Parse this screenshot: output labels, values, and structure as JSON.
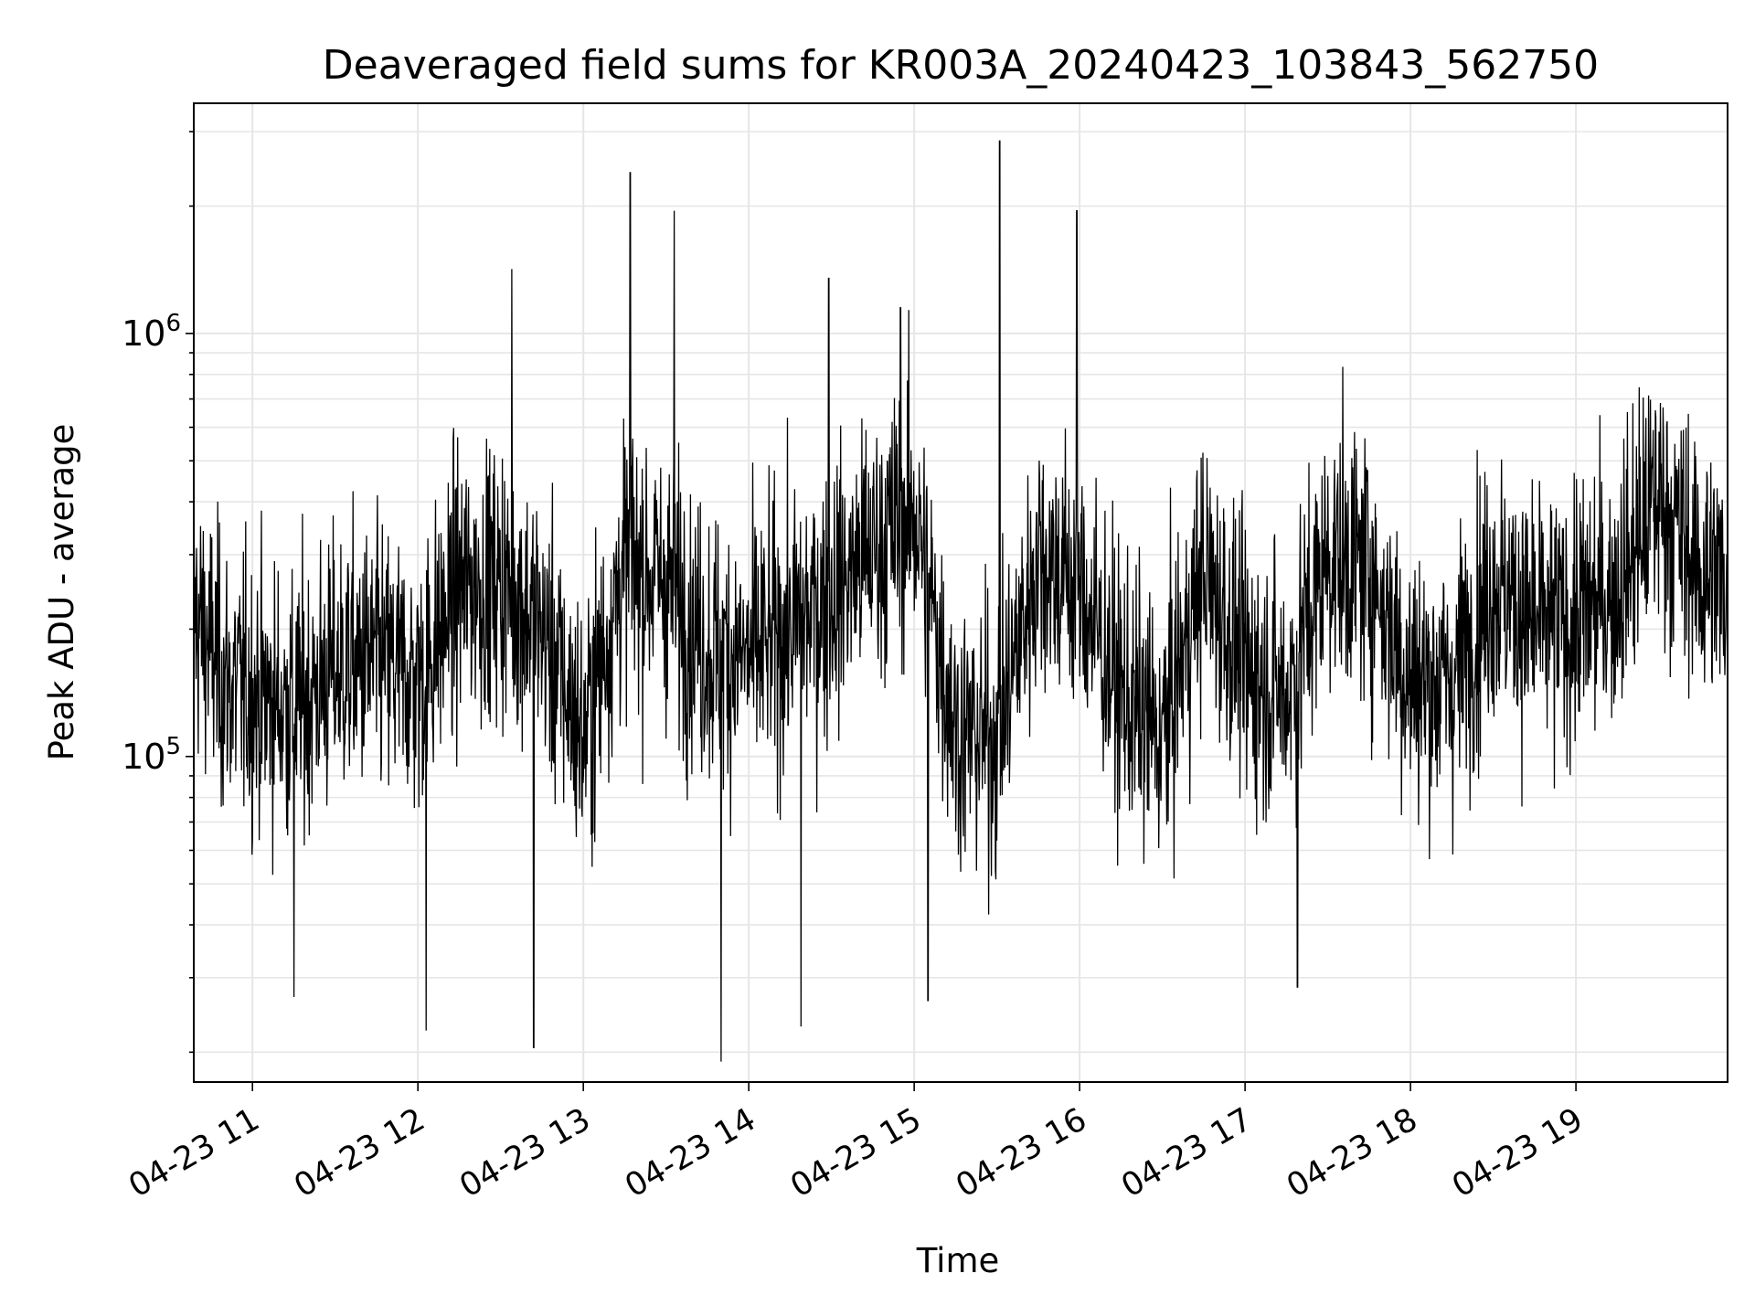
{
  "chart_data": {
    "type": "line",
    "title": "Deaveraged field sums for KR003A_20240423_103843_562750",
    "xlabel": "Time",
    "ylabel": "Peak ADU - average",
    "yscale": "log",
    "xlim": [
      "2024-04-23T10:38:43",
      "2024-04-23T19:55:00"
    ],
    "ylim": [
      17000,
      3500000
    ],
    "grid": true,
    "x_tick_labels": [
      "04-23 11",
      "04-23 12",
      "04-23 13",
      "04-23 14",
      "04-23 15",
      "04-23 16",
      "04-23 17",
      "04-23 18",
      "04-23 19"
    ],
    "y_tick_labels": [
      {
        "base": "10",
        "exp": "5",
        "value": 100000
      },
      {
        "base": "10",
        "exp": "6",
        "value": 1000000
      }
    ],
    "line_color": "#000000",
    "series": [
      {
        "x": [
          "2024-04-23T10:38:43",
          "2024-04-23T10:50",
          "2024-04-23T11:00",
          "2024-04-23T11:15",
          "2024-04-23T11:30",
          "2024-04-23T11:45",
          "2024-04-23T12:00",
          "2024-04-23T12:15",
          "2024-04-23T12:30",
          "2024-04-23T12:45",
          "2024-04-23T13:00",
          "2024-04-23T13:15",
          "2024-04-23T13:30",
          "2024-04-23T13:45",
          "2024-04-23T14:00",
          "2024-04-23T14:15",
          "2024-04-23T14:30",
          "2024-04-23T14:45",
          "2024-04-23T15:00",
          "2024-04-23T15:15",
          "2024-04-23T15:30",
          "2024-04-23T15:45",
          "2024-04-23T16:00",
          "2024-04-23T16:15",
          "2024-04-23T16:30",
          "2024-04-23T16:45",
          "2024-04-23T17:00",
          "2024-04-23T17:15",
          "2024-04-23T17:30",
          "2024-04-23T17:45",
          "2024-04-23T18:00",
          "2024-04-23T18:15",
          "2024-04-23T18:30",
          "2024-04-23T18:45",
          "2024-04-23T19:00",
          "2024-04-23T19:15",
          "2024-04-23T19:30",
          "2024-04-23T19:45",
          "2024-04-23T19:55"
        ],
        "y": [
          220000,
          150000,
          140000,
          130000,
          160000,
          170000,
          150000,
          250000,
          260000,
          200000,
          110000,
          290000,
          260000,
          180000,
          170000,
          200000,
          240000,
          310000,
          380000,
          115000,
          110000,
          300000,
          250000,
          140000,
          110000,
          280000,
          160000,
          140000,
          300000,
          280000,
          150000,
          150000,
          260000,
          200000,
          210000,
          250000,
          420000,
          270000,
          260000
        ]
      }
    ],
    "spikes": [
      {
        "x": "2024-04-23T13:17",
        "y": 2400000
      },
      {
        "x": "2024-04-23T13:33",
        "y": 1950000
      },
      {
        "x": "2024-04-23T15:31",
        "y": 2850000
      },
      {
        "x": "2024-04-23T15:59",
        "y": 1950000
      },
      {
        "x": "2024-04-23T12:34",
        "y": 1420000
      },
      {
        "x": "2024-04-23T14:29",
        "y": 1350000
      },
      {
        "x": "2024-04-23T14:55",
        "y": 1150000
      },
      {
        "x": "2024-04-23T13:50",
        "y": 19000
      },
      {
        "x": "2024-04-23T14:19",
        "y": 23000
      },
      {
        "x": "2024-04-23T12:42",
        "y": 20500
      },
      {
        "x": "2024-04-23T12:03",
        "y": 22500
      },
      {
        "x": "2024-04-23T11:15",
        "y": 27000
      },
      {
        "x": "2024-04-23T15:05",
        "y": 26500
      },
      {
        "x": "2024-04-23T17:19",
        "y": 28500
      }
    ]
  }
}
